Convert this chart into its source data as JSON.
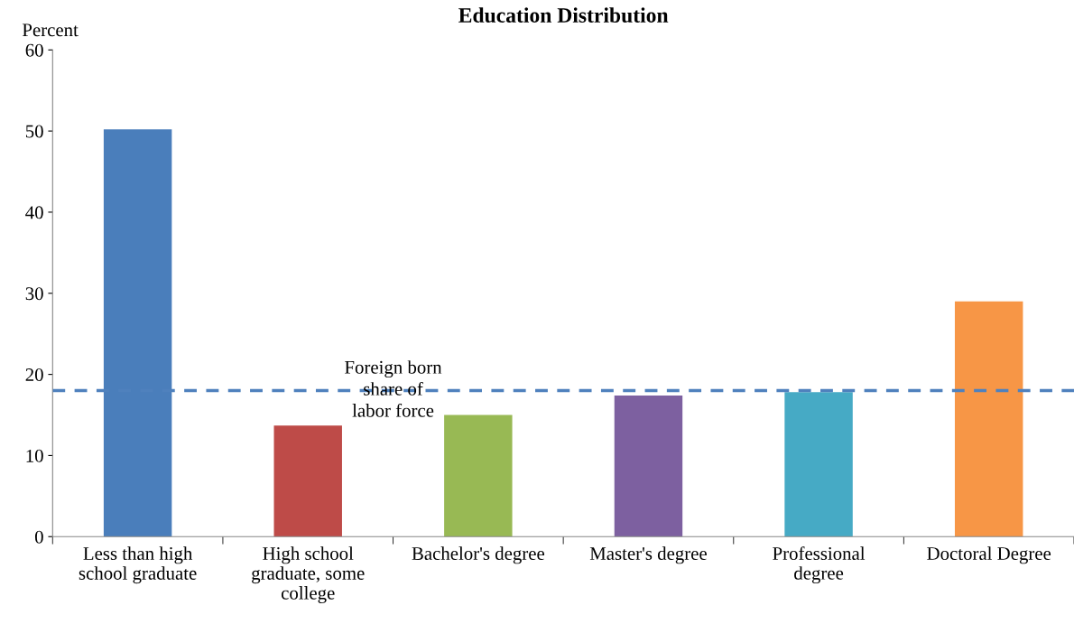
{
  "chart_data": {
    "type": "bar",
    "title": "Education Distribution",
    "ylabel": "Percent",
    "categories": [
      "Less than high\nschool graduate",
      "High school\ngraduate, some\ncollege",
      "Bachelor's degree",
      "Master's degree",
      "Professional\ndegree",
      "Doctoral Degree"
    ],
    "values": [
      50.2,
      13.7,
      15.0,
      17.4,
      17.8,
      29.0
    ],
    "colors": [
      "#4a7ebb",
      "#be4b48",
      "#98b954",
      "#7d60a0",
      "#46aac5",
      "#f79646"
    ],
    "ylim": [
      0,
      60
    ],
    "yticks": [
      0,
      10,
      20,
      30,
      40,
      50,
      60
    ],
    "grid": false,
    "ref_lines": [
      {
        "axis": "y",
        "value": 18.0,
        "label": "Foreign born\nshare of\nlabor force",
        "color": "#4f81bd",
        "line_style": "dashed"
      }
    ]
  }
}
